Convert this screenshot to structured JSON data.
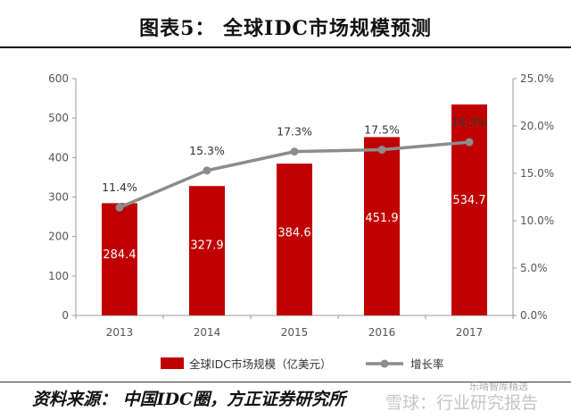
{
  "header": {
    "title": "图表5： 全球IDC市场规模预测"
  },
  "footer": {
    "source": "资料来源： 中国IDC圈，方正证券研究所",
    "watermark": "雪球：行业研究报告",
    "watermark_small": "乐晴智库精选"
  },
  "colors": {
    "bar": "#c00000",
    "line": "#8c8c8c"
  },
  "chart_data": {
    "type": "bar",
    "categories": [
      "2013",
      "2014",
      "2015",
      "2016",
      "2017"
    ],
    "series": [
      {
        "name": "全球IDC市场规模（亿美元）",
        "type": "bar",
        "axis": "left",
        "values": [
          284.4,
          327.9,
          384.6,
          451.9,
          534.7
        ],
        "labels": [
          "284.4",
          "327.9",
          "384.6",
          "451.9",
          "534.7"
        ]
      },
      {
        "name": "增长率",
        "type": "line",
        "axis": "right",
        "values": [
          11.4,
          15.3,
          17.3,
          17.5,
          18.3
        ],
        "labels": [
          "11.4%",
          "15.3%",
          "17.3%",
          "17.5%",
          "18.3%"
        ]
      }
    ],
    "ylim_left": [
      0,
      600
    ],
    "yticks_left": [
      "0",
      "100",
      "200",
      "300",
      "400",
      "500",
      "600"
    ],
    "ylim_right": [
      0,
      25
    ],
    "yticks_right": [
      "0.0%",
      "5.0%",
      "10.0%",
      "15.0%",
      "20.0%",
      "25.0%"
    ],
    "legend_position": "bottom",
    "grid": false
  }
}
